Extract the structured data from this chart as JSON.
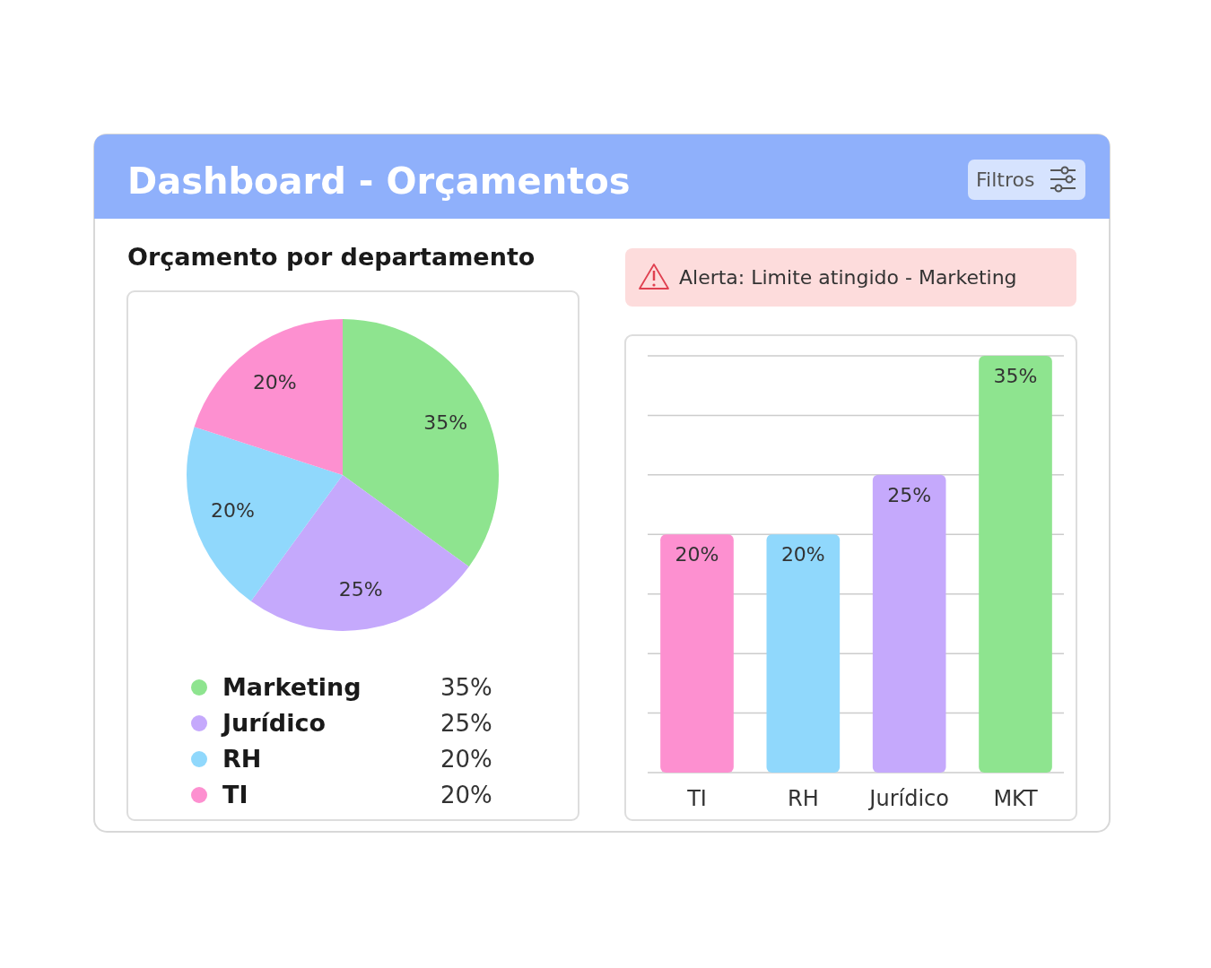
{
  "chart_data": [
    {
      "type": "other",
      "title": "Dashboard - Orçamentos",
      "annotations": [
        "Filtros"
      ]
    },
    {
      "type": "pie",
      "title": "Orçamento por departamento",
      "categories": [
        "Marketing",
        "Jurídico",
        "RH",
        "TI"
      ],
      "values": [
        35,
        25,
        20,
        20
      ],
      "colors": [
        "#8ee48f",
        "#c5a9fc",
        "#90d8fc",
        "#fd90d0"
      ],
      "value_labels": [
        "35%",
        "25%",
        "20%",
        "20%"
      ],
      "legend": "bottom"
    },
    {
      "type": "bar",
      "categories": [
        "TI",
        "RH",
        "Jurídico",
        "MKT"
      ],
      "values": [
        20,
        20,
        25,
        35
      ],
      "colors": [
        "#fd90d0",
        "#90d8fc",
        "#c5a9fc",
        "#8ee48f"
      ],
      "ylim": [
        0,
        35
      ],
      "yticks": [
        {
          "value": 0,
          "label": null
        },
        {
          "value": 5,
          "label": null
        },
        {
          "value": 10,
          "label": null
        },
        {
          "value": 15,
          "label": null
        },
        {
          "value": 20,
          "label": null
        },
        {
          "value": 25,
          "label": null
        },
        {
          "value": 30,
          "label": null
        },
        {
          "value": 35,
          "label": null
        }
      ],
      "grid": "y",
      "tick_labels": "x",
      "value_labels": [
        "20%",
        "20%",
        "25%",
        "35%"
      ],
      "annotations": [
        "Alerta: Limite atingido - Marketing"
      ]
    }
  ]
}
